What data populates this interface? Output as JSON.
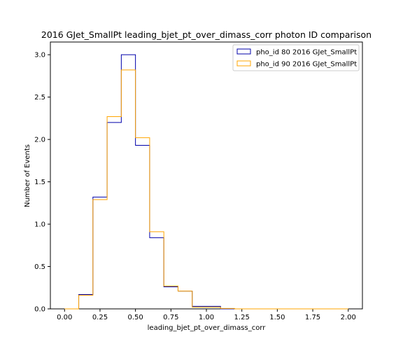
{
  "chart_data": {
    "type": "histogram",
    "title": "2016 GJet_SmallPt leading_bjet_pt_over_dimass_corr photon ID comparison",
    "xlabel": "leading_bjet_pt_over_dimass_corr",
    "ylabel": "Number of Events",
    "xlim": [
      -0.1,
      2.1
    ],
    "ylim": [
      0,
      3.15
    ],
    "x_ticks": [
      "0.00",
      "0.25",
      "0.50",
      "0.75",
      "1.00",
      "1.25",
      "1.50",
      "1.75",
      "2.00"
    ],
    "y_ticks": [
      "0.0",
      "0.5",
      "1.0",
      "1.5",
      "2.0",
      "2.5",
      "3.0"
    ],
    "bin_edges": [
      0.0,
      0.1,
      0.2,
      0.3,
      0.4,
      0.5,
      0.6,
      0.7,
      0.8,
      0.9,
      1.0,
      1.1,
      1.2,
      1.3,
      1.4,
      1.5,
      1.6,
      1.7,
      1.8,
      1.9,
      2.0
    ],
    "series": [
      {
        "name": "pho_id 80 2016 GJet_SmallPt",
        "color": "#0000aa",
        "values": [
          0.0,
          0.17,
          1.32,
          2.2,
          3.0,
          1.93,
          0.84,
          0.26,
          0.21,
          0.03,
          0.03,
          0.0,
          0.0,
          0.0,
          0.0,
          0.0,
          0.0,
          0.0,
          0.0,
          0.0
        ]
      },
      {
        "name": "pho_id 90 2016 GJet_SmallPt",
        "color": "#ffa500",
        "values": [
          0.0,
          0.16,
          1.29,
          2.27,
          2.82,
          2.02,
          0.91,
          0.27,
          0.21,
          0.02,
          0.02,
          0.005,
          0.0,
          0.0,
          0.0,
          0.0,
          0.0,
          0.0,
          0.0,
          0.0
        ]
      }
    ],
    "legend_position": "top-right",
    "grid": false
  }
}
